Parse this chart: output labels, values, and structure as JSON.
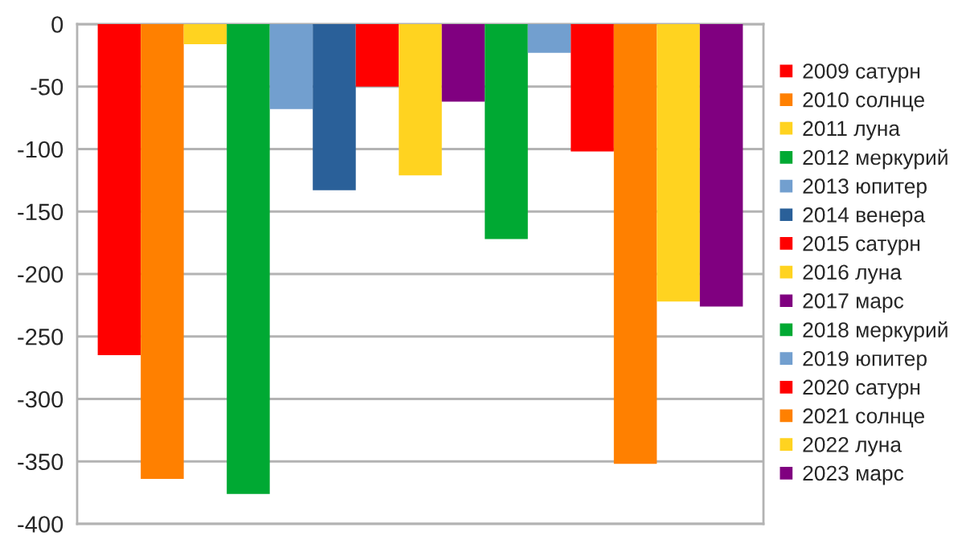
{
  "chart_data": {
    "type": "bar",
    "categories": [
      null
    ],
    "series": [
      {
        "name": "2009 сатурн",
        "color": "#ff0000",
        "values": [
          -265
        ]
      },
      {
        "name": "2010 солнце",
        "color": "#ff8000",
        "values": [
          -364
        ]
      },
      {
        "name": "2011 луна",
        "color": "#ffd320",
        "values": [
          -16
        ]
      },
      {
        "name": "2012 меркурий",
        "color": "#00a933",
        "values": [
          -376
        ]
      },
      {
        "name": "2013 юпитер",
        "color": "#729fcf",
        "values": [
          -68
        ]
      },
      {
        "name": "2014 венера",
        "color": "#2a6099",
        "values": [
          -133
        ]
      },
      {
        "name": "2015 сатурн",
        "color": "#ff0000",
        "values": [
          -50
        ]
      },
      {
        "name": "2016 луна",
        "color": "#ffd320",
        "values": [
          -121
        ]
      },
      {
        "name": "2017 марс",
        "color": "#800080",
        "values": [
          -62
        ]
      },
      {
        "name": "2018 меркурий",
        "color": "#00a933",
        "values": [
          -172
        ]
      },
      {
        "name": "2019 юпитер",
        "color": "#729fcf",
        "values": [
          -23
        ]
      },
      {
        "name": "2020 сатурн",
        "color": "#ff0000",
        "values": [
          -102
        ]
      },
      {
        "name": "2021 солнце",
        "color": "#ff8000",
        "values": [
          -352
        ]
      },
      {
        "name": "2022 луна",
        "color": "#ffd320",
        "values": [
          -222
        ]
      },
      {
        "name": "2023 марс",
        "color": "#800080",
        "values": [
          -226
        ]
      }
    ],
    "ylim": [
      -400,
      0
    ],
    "yticks": [
      -400,
      -350,
      -300,
      -250,
      -200,
      -150,
      -100,
      -50,
      0
    ],
    "grid": "y",
    "legend": "right"
  }
}
